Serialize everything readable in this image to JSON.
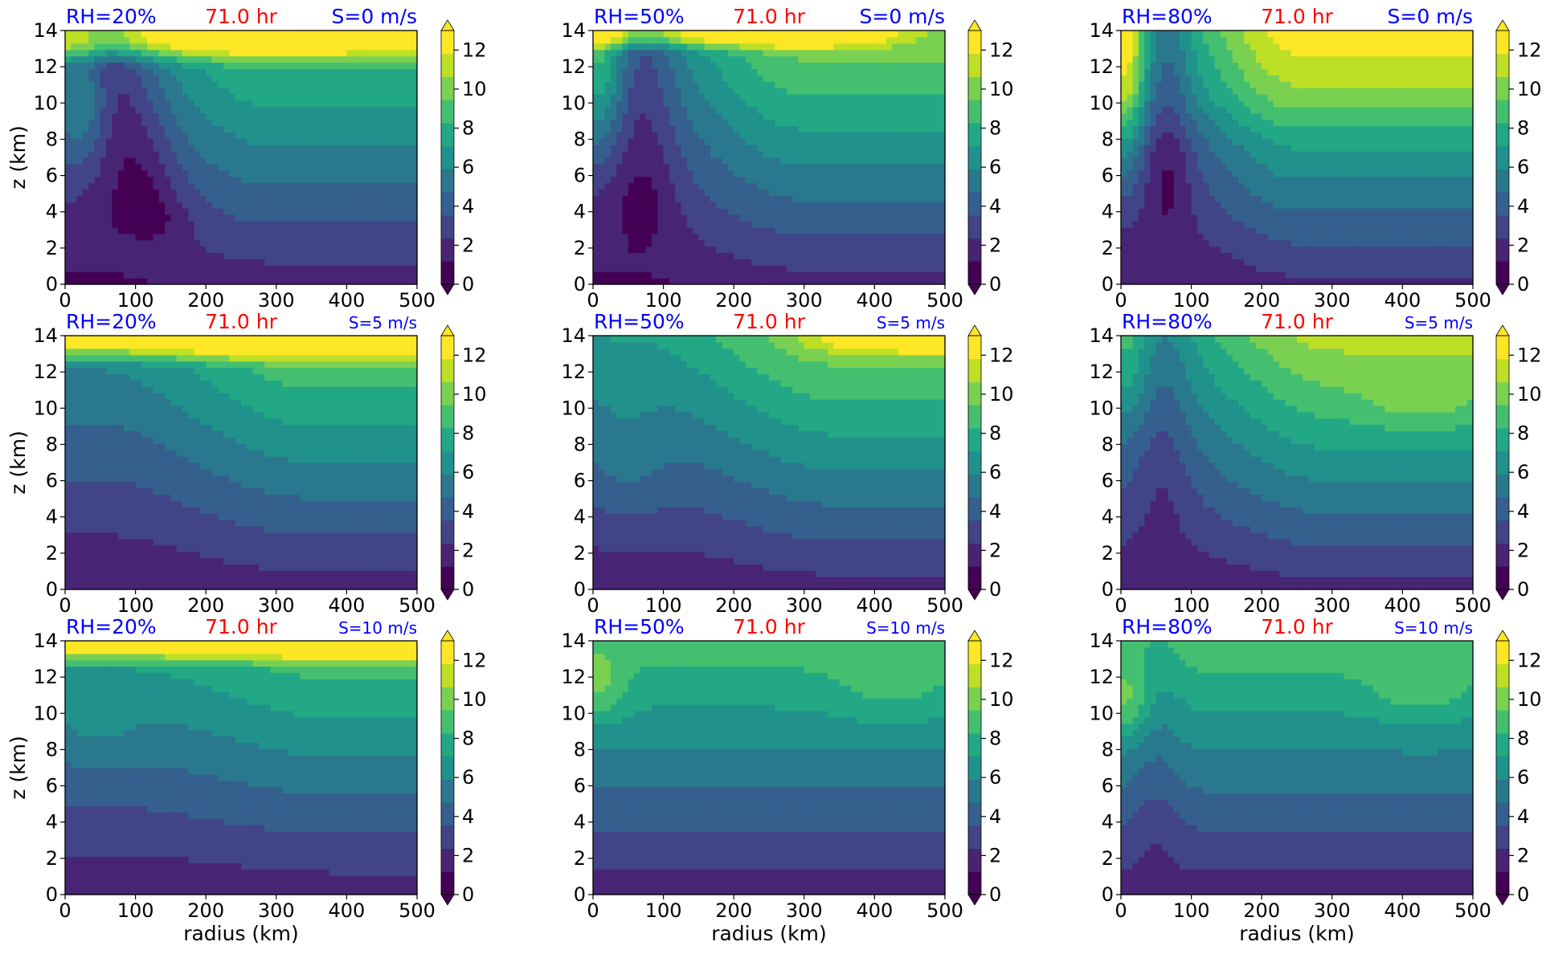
{
  "chart_data": {
    "type": "heatmap",
    "xlabel": "radius (km)",
    "ylabel": "z (km)",
    "xlim": [
      0,
      500
    ],
    "ylim": [
      0,
      14
    ],
    "xticks": [
      "0",
      "100",
      "200",
      "300",
      "400",
      "500"
    ],
    "yticks": [
      "0",
      "2",
      "4",
      "6",
      "8",
      "10",
      "12",
      "14"
    ],
    "colorbar": {
      "ticks": [
        "0",
        "2",
        "4",
        "6",
        "8",
        "10",
        "12"
      ],
      "levels": [
        0,
        1,
        2,
        3,
        4,
        5,
        6,
        7,
        8,
        9,
        10,
        11,
        12,
        13
      ],
      "extend": "both",
      "colors": [
        "#440154",
        "#482475",
        "#414487",
        "#355f8d",
        "#2a788e",
        "#21918c",
        "#22a884",
        "#44bf70",
        "#7ad151",
        "#bddf26",
        "#fde725"
      ]
    },
    "colors": {
      "rh_label": "#0000ff",
      "time_label": "#ff0000",
      "shear_label": "#0000ff"
    },
    "panels": [
      {
        "rh": "RH=20%",
        "time": "71.0 hr",
        "shear": "S=0 m/s"
      },
      {
        "rh": "RH=50%",
        "time": "71.0 hr",
        "shear": "S=0 m/s"
      },
      {
        "rh": "RH=80%",
        "time": "71.0 hr",
        "shear": "S=0 m/s"
      },
      {
        "rh": "RH=20%",
        "time": "71.0 hr",
        "shear": "S=5 m/s"
      },
      {
        "rh": "RH=50%",
        "time": "71.0 hr",
        "shear": "S=5 m/s"
      },
      {
        "rh": "RH=80%",
        "time": "71.0 hr",
        "shear": "S=5 m/s"
      },
      {
        "rh": "RH=20%",
        "time": "71.0 hr",
        "shear": "S=10 m/s"
      },
      {
        "rh": "RH=50%",
        "time": "71.0 hr",
        "shear": "S=10 m/s"
      },
      {
        "rh": "RH=80%",
        "time": "71.0 hr",
        "shear": "S=10 m/s"
      }
    ]
  }
}
